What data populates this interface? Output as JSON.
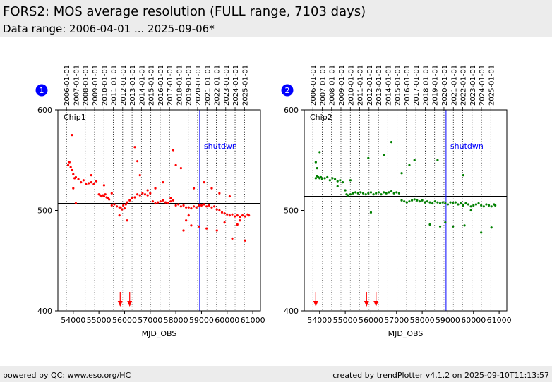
{
  "header": {
    "title": "FORS2: MOS average resolution (FULL range, 7103 days)",
    "subtitle": "Data range: 2006-04-01 ... 2025-09-06*"
  },
  "footer": {
    "left": "powered by QC: www.eso.org/HC",
    "right": "created by trendPlotter v4.1.2 on 2025-09-10T11:13:57"
  },
  "colors": {
    "chip1": "#ff0000",
    "chip2": "#008000",
    "shutdown": "#0000ff",
    "badge": "#0000ff",
    "arrow": "#ff0000"
  },
  "chart_data": [
    {
      "type": "scatter",
      "badge": "1",
      "panel_label": "Chip1",
      "xlabel": "MJD_OBS",
      "xlim": [
        53400,
        61300
      ],
      "ylim": [
        400,
        600
      ],
      "xticks": [
        54000,
        55000,
        56000,
        57000,
        58000,
        59000,
        60000,
        61000
      ],
      "yticks": [
        400,
        500,
        600
      ],
      "top_dates": [
        "2006-01-01",
        "2007-01-01",
        "2008-01-01",
        "2009-01-01",
        "2010-01-01",
        "2011-01-01",
        "2012-01-01",
        "2013-01-01",
        "2014-01-01",
        "2015-01-01",
        "2016-01-01",
        "2017-01-01",
        "2018-01-01",
        "2019-01-01",
        "2020-01-01",
        "2021-01-01",
        "2022-01-01",
        "2023-01-01",
        "2024-01-01",
        "2025-01-01"
      ],
      "top_dates_mjd": [
        53736,
        54101,
        54466,
        54831,
        55197,
        55562,
        55927,
        56293,
        56658,
        57023,
        57388,
        57754,
        58119,
        58484,
        58849,
        59215,
        59580,
        59945,
        60310,
        60676
      ],
      "reference_y": 507,
      "shutdown": {
        "x": 58930,
        "label": "shutdwn"
      },
      "arrows_x": [
        55830,
        56200
      ],
      "color": "#ff0000",
      "series": [
        {
          "x": [
            53800,
            53850,
            53900,
            53950,
            54000,
            54050,
            54100,
            54200,
            54300,
            54400,
            54500,
            54600,
            54700,
            54800,
            54900,
            55000,
            55050,
            55100,
            55150,
            55200,
            55250,
            55300,
            55350,
            55400,
            55500,
            55600,
            55700,
            55800,
            55850,
            55900,
            55950,
            56000,
            56050,
            56100,
            56200,
            56300,
            56400,
            56500,
            56600,
            56700,
            56800,
            56900,
            57000,
            57100,
            57200,
            57300,
            57400,
            57500,
            57600,
            57700,
            57800,
            57900,
            58000,
            58100,
            58200,
            58300,
            58400,
            58500,
            58600,
            58700,
            58800,
            58900,
            59000,
            59100,
            59200,
            59300,
            59400,
            59500,
            59600,
            59700,
            59800,
            59900,
            60000,
            60100,
            60200,
            60300,
            60400,
            60500,
            60600,
            60700,
            60800,
            60850
          ],
          "y": [
            545,
            548,
            543,
            540,
            536,
            532,
            533,
            531,
            528,
            530,
            526,
            527,
            528,
            526,
            529,
            516,
            515,
            514,
            515,
            514,
            516,
            513,
            512,
            511,
            505,
            506,
            504,
            503,
            503,
            501,
            505,
            502,
            506,
            508,
            510,
            512,
            513,
            516,
            515,
            517,
            516,
            515,
            517,
            509,
            507,
            508,
            509,
            510,
            508,
            507,
            509,
            510,
            505,
            506,
            504,
            505,
            503,
            503,
            502,
            504,
            503,
            505,
            505,
            506,
            504,
            505,
            503,
            504,
            501,
            500,
            498,
            497,
            496,
            495,
            496,
            494,
            495,
            493,
            495,
            494,
            496,
            495
          ]
        },
        {
          "x": [
            53950,
            54000,
            54100,
            54700,
            55200,
            55500,
            55800,
            56100,
            56400,
            56500,
            56600,
            56900,
            57200,
            57500,
            57800,
            57900,
            58000,
            58200,
            58300,
            58400,
            58500,
            58600,
            58700,
            58900,
            59100,
            59200,
            59400,
            59600,
            59700,
            59900,
            60100,
            60200,
            60400,
            60500,
            60700
          ],
          "y": [
            575,
            522,
            507,
            535,
            525,
            517,
            495,
            490,
            563,
            549,
            535,
            520,
            522,
            528,
            512,
            560,
            545,
            542,
            480,
            490,
            495,
            485,
            522,
            484,
            528,
            482,
            522,
            480,
            517,
            488,
            514,
            472,
            486,
            490,
            470
          ]
        }
      ]
    },
    {
      "type": "scatter",
      "badge": "2",
      "panel_label": "Chip2",
      "xlabel": "MJD_OBS",
      "xlim": [
        53400,
        61300
      ],
      "ylim": [
        400,
        600
      ],
      "xticks": [
        54000,
        55000,
        56000,
        57000,
        58000,
        59000,
        60000,
        61000
      ],
      "yticks": [
        400,
        500,
        600
      ],
      "top_dates": [
        "2006-01-01",
        "2007-01-01",
        "2008-01-01",
        "2009-01-01",
        "2010-01-01",
        "2011-01-01",
        "2012-01-01",
        "2013-01-01",
        "2014-01-01",
        "2015-01-01",
        "2016-01-01",
        "2017-01-01",
        "2018-01-01",
        "2019-01-01",
        "2020-01-01",
        "2021-01-01",
        "2022-01-01",
        "2023-01-01",
        "2024-01-01",
        "2025-01-01"
      ],
      "top_dates_mjd": [
        53736,
        54101,
        54466,
        54831,
        55197,
        55562,
        55927,
        56293,
        56658,
        57023,
        57388,
        57754,
        58119,
        58484,
        58849,
        59215,
        59580,
        59945,
        60310,
        60676
      ],
      "reference_y": 514,
      "shutdown": {
        "x": 58930,
        "label": "shutdwn"
      },
      "arrows_x": [
        53850,
        55830,
        56200
      ],
      "color": "#008000",
      "series": [
        {
          "x": [
            53850,
            53900,
            53950,
            54000,
            54050,
            54100,
            54200,
            54300,
            54400,
            54500,
            54600,
            54700,
            54800,
            54900,
            55000,
            55050,
            55100,
            55200,
            55300,
            55400,
            55500,
            55600,
            55700,
            55800,
            55900,
            56000,
            56100,
            56200,
            56300,
            56400,
            56500,
            56600,
            56700,
            56800,
            56900,
            57000,
            57100,
            57200,
            57300,
            57400,
            57500,
            57600,
            57700,
            57800,
            57900,
            58000,
            58100,
            58200,
            58300,
            58400,
            58500,
            58600,
            58700,
            58800,
            58900,
            59000,
            59100,
            59200,
            59300,
            59400,
            59500,
            59600,
            59700,
            59800,
            59900,
            60000,
            60100,
            60200,
            60300,
            60400,
            60500,
            60600,
            60700,
            60800,
            60850
          ],
          "y": [
            532,
            534,
            533,
            532,
            533,
            531,
            532,
            533,
            530,
            532,
            531,
            529,
            530,
            528,
            520,
            516,
            515,
            516,
            517,
            518,
            517,
            518,
            517,
            516,
            517,
            518,
            516,
            517,
            518,
            516,
            518,
            517,
            518,
            519,
            517,
            518,
            517,
            510,
            509,
            508,
            509,
            510,
            511,
            510,
            509,
            510,
            508,
            509,
            508,
            507,
            509,
            508,
            507,
            508,
            507,
            506,
            508,
            507,
            508,
            506,
            507,
            505,
            507,
            506,
            504,
            505,
            506,
            507,
            505,
            504,
            506,
            505,
            504,
            506,
            505
          ]
        },
        {
          "x": [
            53850,
            53900,
            54000,
            54700,
            55200,
            55900,
            56000,
            56500,
            56800,
            57200,
            57500,
            57700,
            58300,
            58600,
            58700,
            58900,
            59200,
            59600,
            59650,
            59900,
            60300,
            60700
          ],
          "y": [
            548,
            542,
            558,
            524,
            530,
            552,
            498,
            555,
            568,
            537,
            545,
            550,
            486,
            550,
            484,
            488,
            484,
            535,
            485,
            500,
            478,
            483
          ]
        }
      ]
    }
  ]
}
